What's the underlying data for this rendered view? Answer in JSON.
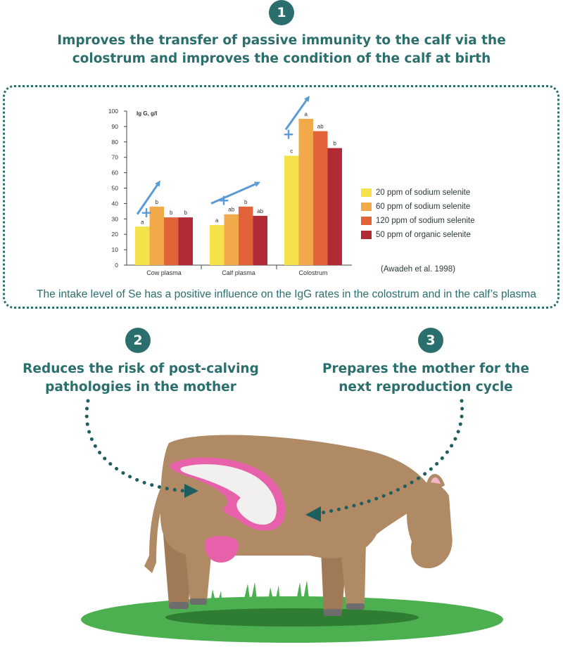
{
  "steps": [
    {
      "number": "1",
      "text_lines": [
        "Improves the transfer of passive immunity to the calf via the",
        "colostrum and improves the condition of the calf at birth"
      ]
    },
    {
      "number": "2",
      "text_lines": [
        "Reduces the risk of post-calving",
        "pathologies in the mother"
      ]
    },
    {
      "number": "3",
      "text_lines": [
        "Prepares the mother for the",
        "next reproduction cycle"
      ]
    }
  ],
  "caption": "The intake level of Se has a positive influence on the IgG rates in the colostrum and in the calf’s plasma",
  "source": "(Awadeh et al. 1998)",
  "colors": {
    "accent": "#2a6f6d",
    "arrow": "#5b9bd5",
    "cow": "#b08a64",
    "udder": "#e661a9",
    "grass": "#4caf50"
  },
  "chart_data": {
    "type": "bar",
    "ylabel": "Ig G, g/l",
    "ylim": [
      0,
      100
    ],
    "yticks": [
      0,
      10,
      20,
      30,
      40,
      50,
      60,
      70,
      80,
      90,
      100
    ],
    "categories": [
      "Cow plasma",
      "Calf plasma",
      "Colostrum"
    ],
    "series": [
      {
        "name": "20 ppm of sodium selenite",
        "color": "#f5e14a",
        "values": [
          25,
          26,
          71
        ],
        "labels": [
          "a",
          "a",
          "c"
        ]
      },
      {
        "name": "60 ppm of sodium selenite",
        "color": "#f2a94a",
        "values": [
          38,
          33,
          95
        ],
        "labels": [
          "b",
          "ab",
          "a"
        ]
      },
      {
        "name": "120 ppm of sodium selenite",
        "color": "#e2623a",
        "values": [
          31,
          38,
          87
        ],
        "labels": [
          "b",
          "b",
          "ab"
        ]
      },
      {
        "name": "50 ppm of organic selenite",
        "color": "#b12b34",
        "values": [
          31,
          32,
          76
        ],
        "labels": [
          "b",
          "ab",
          "b"
        ]
      }
    ],
    "annotations": [
      "+",
      "+",
      "+"
    ],
    "grid": false,
    "legend": "right"
  }
}
